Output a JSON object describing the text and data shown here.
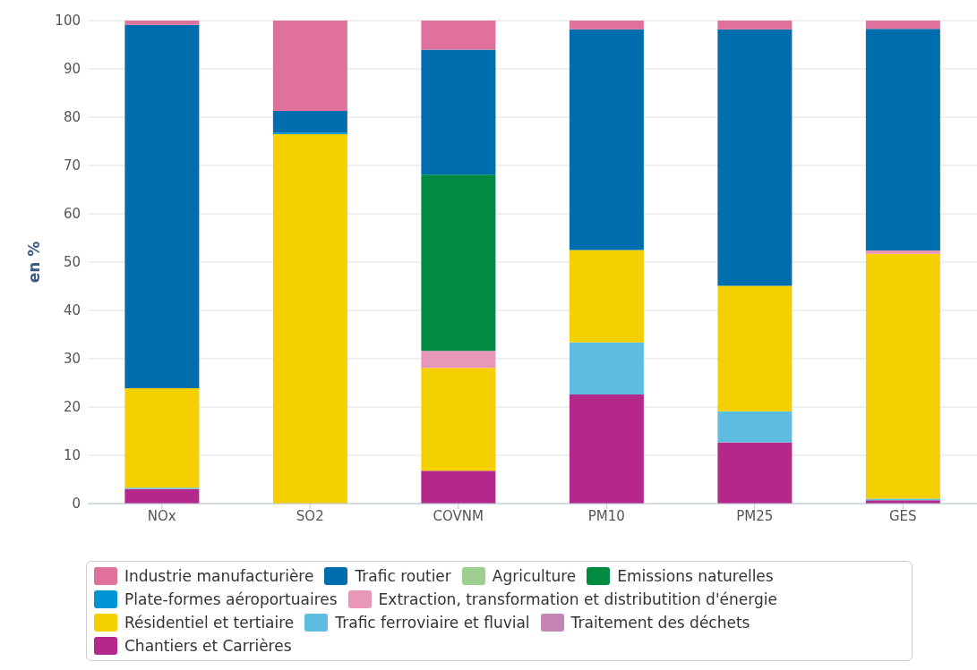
{
  "chart_data": {
    "type": "bar",
    "stacked": true,
    "ylabel": "en %",
    "categories": [
      "NOx",
      "SO2",
      "COVNM",
      "PM10",
      "PM25",
      "GES"
    ],
    "ylim": [
      0,
      100
    ],
    "yticks": [
      0,
      10,
      20,
      30,
      40,
      50,
      60,
      70,
      80,
      90,
      100
    ],
    "grid": "y",
    "legend": "bottom",
    "series": [
      {
        "name": "Chantiers et Carrières",
        "color": "#b5288b",
        "values": [
          3,
          0,
          6.8,
          22.6,
          12.7,
          0.7
        ]
      },
      {
        "name": "Traitement des déchets",
        "color": "#c585b3",
        "values": [
          0,
          0,
          0,
          0,
          0,
          0
        ]
      },
      {
        "name": "Trafic ferroviaire et fluvial",
        "color": "#5cbde0",
        "values": [
          0.3,
          0,
          0,
          10.8,
          6.4,
          0.3
        ]
      },
      {
        "name": "Résidentiel et tertiaire",
        "color": "#f5d000",
        "values": [
          20.6,
          76.5,
          21.3,
          19.1,
          26,
          50.7
        ]
      },
      {
        "name": "Extraction, transformation et distributition d'énergie",
        "color": "#e897b8",
        "values": [
          0,
          0,
          3.5,
          0,
          0,
          0.7
        ]
      },
      {
        "name": "Plate-formes aéroportuaires",
        "color": "#0096d6",
        "values": [
          0,
          0.3,
          0,
          0,
          0,
          0
        ]
      },
      {
        "name": "Emissions naturelles",
        "color": "#008a42",
        "values": [
          0,
          0,
          36.5,
          0,
          0,
          0
        ]
      },
      {
        "name": "Agriculture",
        "color": "#9fcf8f",
        "values": [
          0,
          0,
          0,
          0,
          0,
          0
        ]
      },
      {
        "name": "Trafic routier",
        "color": "#006eae",
        "values": [
          75.2,
          4.5,
          25.9,
          45.7,
          53.1,
          45.9
        ]
      },
      {
        "name": "Industrie manufacturière",
        "color": "#e0719c",
        "values": [
          0.9,
          18.7,
          6,
          1.8,
          1.8,
          1.7
        ]
      }
    ]
  }
}
